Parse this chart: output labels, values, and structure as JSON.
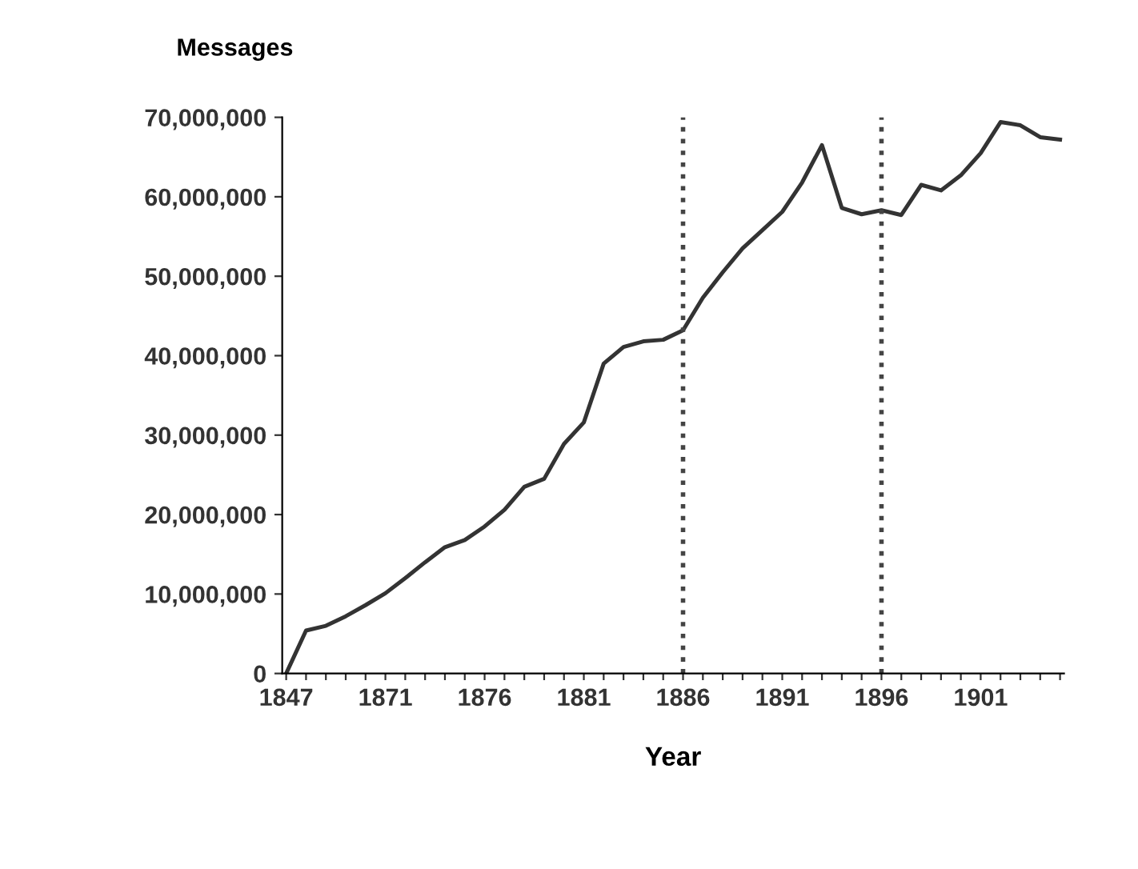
{
  "chart_data": {
    "type": "line",
    "xlabel": "Year",
    "ylabel": "Messages",
    "categories": [
      "1847",
      null,
      null,
      null,
      null,
      "1871",
      null,
      null,
      null,
      null,
      "1876",
      null,
      null,
      null,
      null,
      "1881",
      null,
      null,
      null,
      null,
      "1886",
      null,
      null,
      null,
      null,
      "1891",
      null,
      null,
      null,
      null,
      "1896",
      null,
      null,
      null,
      null,
      "1901",
      null,
      null,
      null,
      null
    ],
    "series": [
      {
        "color": "#333333",
        "values": [
          0,
          5400000,
          6000000,
          7200000,
          8600000,
          10100000,
          12000000,
          14000000,
          15900000,
          16800000,
          18500000,
          20600000,
          23500000,
          24500000,
          28900000,
          31600000,
          39000000,
          41100000,
          41800000,
          42000000,
          43200000,
          47300000,
          50500000,
          53500000,
          55800000,
          58100000,
          61800000,
          66500000,
          58600000,
          57800000,
          58300000,
          57700000,
          61500000,
          60800000,
          62700000,
          65500000,
          69400000,
          69000000,
          67500000,
          67200000
        ]
      }
    ],
    "ylim": [
      0,
      70000000
    ],
    "yticks": [
      0,
      {
        "value": 10000000,
        "label": "10,000,000"
      },
      {
        "value": 20000000,
        "label": "20,000,000"
      },
      {
        "value": 30000000,
        "label": "30,000,000"
      },
      {
        "value": 40000000,
        "label": "40,000,000"
      },
      {
        "value": 50000000,
        "label": "50,000,000"
      },
      {
        "value": 60000000,
        "label": "60,000,000"
      },
      {
        "value": 70000000,
        "label": "70,000,000"
      }
    ],
    "ref_lines": [
      {
        "axis": "x",
        "value": "1886",
        "color": "#444444",
        "line_style": "dotted"
      },
      {
        "axis": "x",
        "value": "1896",
        "color": "#444444",
        "line_style": "dotted"
      }
    ],
    "grid": false,
    "legend": false,
    "marker": "none",
    "line_style": "solid"
  }
}
